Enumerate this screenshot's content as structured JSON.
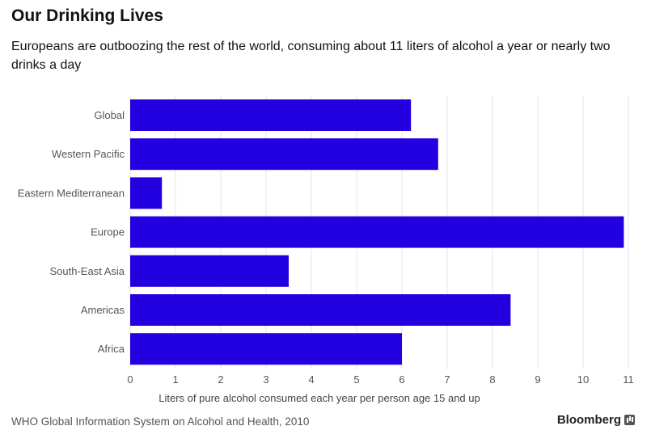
{
  "header": {
    "title": "Our Drinking Lives",
    "subtitle": "Europeans are outboozing the rest of the world, consuming about 11 liters of alcohol a year or nearly two drinks a day"
  },
  "footer": {
    "source": "WHO Global Information System on Alcohol and Health, 2010",
    "brand": "Bloomberg"
  },
  "colors": {
    "bar": "#2200e0",
    "grid": "#e4e4e4"
  },
  "chart_data": {
    "type": "bar",
    "orientation": "horizontal",
    "categories": [
      "Global",
      "Western Pacific",
      "Eastern Mediterranean",
      "Europe",
      "South-East Asia",
      "Americas",
      "Africa"
    ],
    "values": [
      6.2,
      6.8,
      0.7,
      10.9,
      3.5,
      8.4,
      6.0
    ],
    "xlabel": "Liters of pure alcohol consumed each year per person age 15 and up",
    "xlim": [
      0,
      11
    ],
    "xticks": [
      0,
      1,
      2,
      3,
      4,
      5,
      6,
      7,
      8,
      9,
      10,
      11
    ],
    "grid": "vertical"
  }
}
